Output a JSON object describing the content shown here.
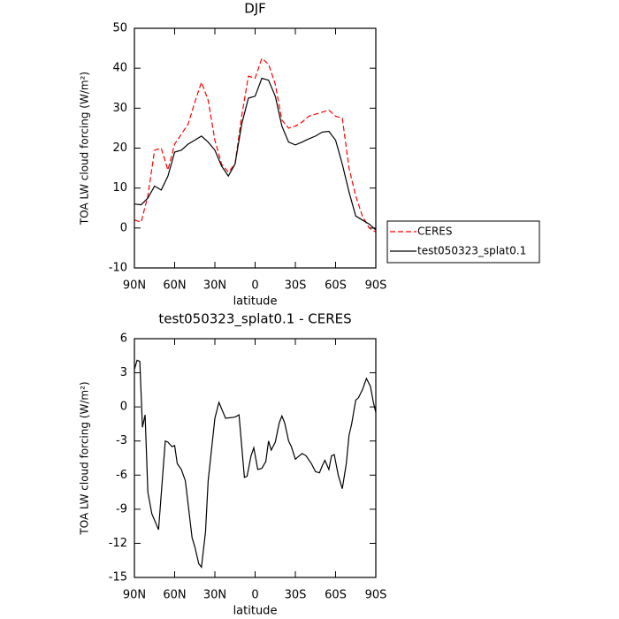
{
  "chart_data": [
    {
      "type": "line",
      "title": "DJF",
      "x_label": "latitude",
      "y_label": "TOA LW cloud forcing (W/m²)",
      "x": [
        90,
        85,
        80,
        75,
        70,
        65,
        60,
        55,
        50,
        45,
        40,
        35,
        30,
        25,
        20,
        15,
        10,
        5,
        0,
        -5,
        -10,
        -15,
        -20,
        -25,
        -30,
        -35,
        -40,
        -45,
        -50,
        -55,
        -60,
        -65,
        -70,
        -75,
        -80,
        -85,
        -90
      ],
      "series": [
        {
          "name": "CERES",
          "color": "#ff0000",
          "dash": true,
          "values": [
            2,
            1.5,
            8,
            19.5,
            20,
            14.5,
            21,
            23.5,
            26,
            31.5,
            36.5,
            32,
            22,
            16,
            14,
            16,
            28,
            38,
            37.5,
            42.5,
            41,
            36,
            27,
            25,
            25.5,
            26.5,
            28,
            28.5,
            29,
            29.5,
            28,
            27.5,
            15,
            8,
            3,
            0,
            -1
          ]
        },
        {
          "name": "test050323_splat0.1",
          "color": "#000000",
          "dash": false,
          "values": [
            6,
            5.8,
            7.5,
            10.5,
            9.5,
            13,
            19,
            19.5,
            21,
            22,
            23,
            21.5,
            19.5,
            15.5,
            13,
            16,
            26,
            32.5,
            33,
            37.5,
            37,
            33,
            25.5,
            21.5,
            20.8,
            21.5,
            22.3,
            23,
            24,
            24.2,
            22,
            16,
            9,
            3,
            2,
            1,
            -0.5
          ]
        }
      ],
      "xlim": [
        90,
        -90
      ],
      "xticks": [
        {
          "value": 90,
          "label": "90N"
        },
        {
          "value": 60,
          "label": "60N"
        },
        {
          "value": 30,
          "label": "30N"
        },
        0,
        {
          "value": -30,
          "label": "30S"
        },
        {
          "value": -60,
          "label": "60S"
        },
        {
          "value": -90,
          "label": "90S"
        }
      ],
      "ylim": [
        -10,
        50
      ],
      "yticks": [
        -10,
        0,
        10,
        20,
        30,
        40,
        50
      ],
      "grid": false,
      "legend": "right"
    },
    {
      "type": "line",
      "title": "test050323_splat0.1 - CERES",
      "x_label": "latitude",
      "y_label": "TOA LW cloud forcing (W/m²)",
      "x": [
        90,
        88,
        86,
        84,
        82,
        80,
        77,
        72,
        67,
        65,
        62,
        60,
        58,
        55,
        52,
        47,
        45,
        42,
        40,
        37,
        35,
        30,
        27,
        22,
        15,
        12,
        8,
        6,
        3,
        1,
        -2,
        -5,
        -8,
        -10,
        -12,
        -15,
        -18,
        -20,
        -22,
        -25,
        -27,
        -30,
        -32,
        -35,
        -38,
        -42,
        -45,
        -48,
        -50,
        -52,
        -55,
        -57,
        -59,
        -62,
        -65,
        -68,
        -70,
        -72,
        -75,
        -77,
        -80,
        -83,
        -86,
        -88,
        -90
      ],
      "series": [
        {
          "name": "test050323_splat0.1 - CERES",
          "color": "#000000",
          "dash": false,
          "values": [
            3.3,
            4.1,
            4.0,
            -1.8,
            -0.7,
            -7.5,
            -9.4,
            -10.8,
            -3,
            -3.1,
            -3.5,
            -3.4,
            -5,
            -5.5,
            -6.5,
            -11.5,
            -12.3,
            -13.8,
            -14.1,
            -11,
            -6.5,
            -1,
            0.4,
            -1,
            -0.9,
            -0.7,
            -6.2,
            -6.1,
            -4.3,
            -3.6,
            -5.5,
            -5.4,
            -4.8,
            -3,
            -3.8,
            -3.1,
            -1.4,
            -0.8,
            -1.4,
            -3,
            -3.5,
            -4.6,
            -4.4,
            -4.1,
            -4.3,
            -5,
            -5.7,
            -5.8,
            -5.2,
            -4.7,
            -5.5,
            -4.3,
            -4.2,
            -6,
            -7.2,
            -5,
            -2.5,
            -1.5,
            0.6,
            0.8,
            1.5,
            2.5,
            1.8,
            0.5,
            -0.5
          ]
        }
      ],
      "xlim": [
        90,
        -90
      ],
      "xticks": [
        {
          "value": 90,
          "label": "90N"
        },
        {
          "value": 60,
          "label": "60N"
        },
        {
          "value": 30,
          "label": "30N"
        },
        0,
        {
          "value": -30,
          "label": "30S"
        },
        {
          "value": -60,
          "label": "60S"
        },
        {
          "value": -90,
          "label": "90S"
        }
      ],
      "ylim": [
        -15,
        6
      ],
      "yticks": [
        -15,
        -12,
        -9,
        -6,
        -3,
        0,
        3,
        6
      ],
      "grid": false
    }
  ]
}
